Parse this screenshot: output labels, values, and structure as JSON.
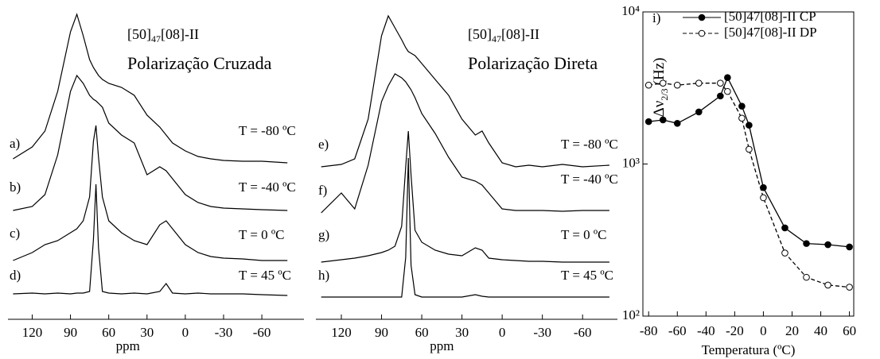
{
  "chart_data": [
    {
      "type": "spectra",
      "title_parts": [
        "[50]",
        "47",
        "[08]-II"
      ],
      "subtitle": "Polarização Cruzada",
      "x": [
        135,
        120,
        110,
        100,
        90,
        85,
        80,
        75,
        72,
        70,
        68,
        65,
        60,
        50,
        40,
        30,
        20,
        15,
        10,
        0,
        -10,
        -20,
        -30,
        -45,
        -60,
        -80
      ],
      "xlim": [
        139,
        -93
      ],
      "xticks": [
        120,
        90,
        60,
        30,
        0,
        -30,
        -60
      ],
      "xlabel": "ppm",
      "series": [
        {
          "name": "a)",
          "label": "T = -80 ºC",
          "color": "#000000",
          "values": [
            5,
            20,
            40,
            90,
            165,
            187,
            160,
            130,
            120,
            115,
            110,
            105,
            100,
            95,
            85,
            60,
            45,
            35,
            25,
            15,
            8,
            5,
            3,
            2,
            2,
            0
          ]
        },
        {
          "name": "b)",
          "label": "T = -40 ºC",
          "color": "#000000",
          "values": [
            0,
            5,
            20,
            70,
            150,
            170,
            160,
            145,
            140,
            138,
            135,
            130,
            110,
            95,
            85,
            45,
            55,
            50,
            40,
            20,
            10,
            5,
            3,
            2,
            1,
            0
          ]
        },
        {
          "name": "c)",
          "label": "T = 0 ºC",
          "color": "#000000",
          "values": [
            0,
            10,
            20,
            25,
            35,
            40,
            50,
            80,
            150,
            170,
            130,
            80,
            50,
            35,
            25,
            20,
            45,
            50,
            40,
            20,
            10,
            5,
            3,
            2,
            0,
            0
          ]
        },
        {
          "name": "d)",
          "label": "T = 45 ºC",
          "color": "#000000",
          "values": [
            2,
            3,
            2,
            3,
            2,
            3,
            3,
            5,
            70,
            140,
            60,
            5,
            3,
            2,
            3,
            2,
            5,
            15,
            3,
            2,
            3,
            2,
            2,
            2,
            1,
            0
          ]
        }
      ]
    },
    {
      "type": "spectra",
      "title_parts": [
        "[50]",
        "47",
        "[08]-II"
      ],
      "subtitle": "Polarização Direta",
      "x": [
        135,
        120,
        110,
        100,
        90,
        85,
        80,
        75,
        72,
        70,
        68,
        65,
        60,
        50,
        40,
        30,
        20,
        15,
        10,
        0,
        -10,
        -20,
        -30,
        -45,
        -60,
        -80
      ],
      "xlim": [
        139,
        -86
      ],
      "xticks": [
        120,
        90,
        60,
        30,
        0,
        -30,
        -60
      ],
      "xlabel": "ppm",
      "series": [
        {
          "name": "e)",
          "label": "T = -80 ºC",
          "color": "#000000",
          "values": [
            0,
            3,
            10,
            60,
            165,
            190,
            175,
            160,
            150,
            145,
            143,
            140,
            130,
            110,
            90,
            60,
            40,
            45,
            30,
            5,
            0,
            2,
            0,
            3,
            0,
            2
          ]
        },
        {
          "name": "f)",
          "label": "T = -40 ºC",
          "color": "#000000",
          "values": [
            0,
            25,
            5,
            60,
            140,
            160,
            175,
            170,
            165,
            160,
            155,
            145,
            125,
            100,
            70,
            45,
            40,
            35,
            25,
            5,
            3,
            3,
            3,
            2,
            3,
            3
          ]
        },
        {
          "name": "g)",
          "label": "T = 0 ºC",
          "color": "#000000",
          "values": [
            0,
            3,
            5,
            8,
            12,
            15,
            20,
            45,
            120,
            165,
            110,
            40,
            25,
            15,
            10,
            8,
            18,
            15,
            5,
            3,
            2,
            1,
            1,
            0,
            0,
            0
          ]
        },
        {
          "name": "h)",
          "label": "T = 45 ºC",
          "color": "#000000",
          "values": [
            0,
            0,
            0,
            0,
            0,
            0,
            0,
            0,
            50,
            175,
            40,
            3,
            0,
            0,
            0,
            0,
            3,
            1,
            0,
            0,
            0,
            0,
            0,
            0,
            0,
            0
          ]
        }
      ]
    },
    {
      "type": "line",
      "panel_label": "i)",
      "ylabel_parts": [
        "Δν",
        "2/3",
        "(Hz)"
      ],
      "xlabel": "Temperatura (ºC)",
      "xlim": [
        -84,
        63
      ],
      "xticks": [
        -80,
        -60,
        -40,
        -20,
        0,
        20,
        40,
        60
      ],
      "ylim": [
        100,
        10000
      ],
      "yscale": "log",
      "yticks": [
        {
          "value": 100,
          "label": "10²"
        },
        {
          "value": 1000,
          "label": "10³"
        },
        {
          "value": 10000,
          "label": "10⁴"
        }
      ],
      "series": [
        {
          "name": "[50]47[08]-II   CP",
          "color": "#000000",
          "marker": "filled",
          "linestyle": "solid",
          "x": [
            -80,
            -70,
            -60,
            -45,
            -30,
            -25,
            -15,
            -10,
            0,
            15,
            30,
            45,
            60
          ],
          "values": [
            1900,
            1950,
            1850,
            2200,
            2800,
            3700,
            2400,
            1800,
            700,
            380,
            300,
            295,
            285
          ]
        },
        {
          "name": "[50]47[08]-II   DP",
          "color": "#000000",
          "marker": "open",
          "linestyle": "dashed",
          "x": [
            -80,
            -70,
            -60,
            -45,
            -30,
            -25,
            -15,
            -10,
            0,
            15,
            30,
            45,
            60
          ],
          "values": [
            3300,
            3400,
            3300,
            3400,
            3400,
            3000,
            2000,
            1250,
            600,
            260,
            180,
            160,
            155
          ]
        }
      ]
    }
  ]
}
